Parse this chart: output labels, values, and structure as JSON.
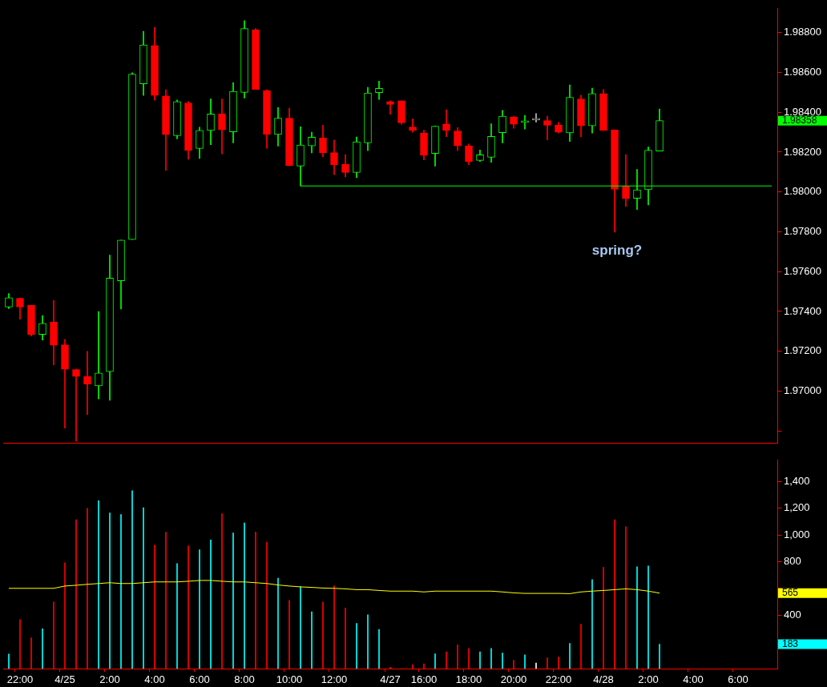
{
  "chart_data": [
    {
      "type": "candlestick",
      "categories": [
        null,
        null,
        null,
        null,
        null,
        null,
        null,
        null,
        null,
        null,
        null,
        null,
        null,
        null,
        null,
        null,
        null,
        null,
        null,
        null,
        null,
        null,
        null,
        null,
        null,
        null,
        null,
        null,
        null,
        null,
        null,
        null,
        null,
        null,
        null,
        null,
        null,
        null,
        null,
        null,
        null,
        null,
        null,
        null,
        null,
        null,
        null,
        null,
        null,
        null,
        null,
        null,
        null,
        null,
        null,
        null,
        null,
        null,
        null,
        null,
        null,
        null,
        null,
        null,
        null,
        null,
        null,
        null,
        null
      ],
      "ohlc": [
        [
          1.97422,
          1.9749,
          1.97414,
          1.97469
        ],
        [
          1.97466,
          1.97468,
          1.97361,
          1.97422
        ],
        [
          1.97431,
          1.97431,
          1.97277,
          1.97284
        ],
        [
          1.97285,
          1.9738,
          1.97257,
          1.9734
        ],
        [
          1.97346,
          1.97455,
          1.97132,
          1.9723
        ],
        [
          1.97233,
          1.9726,
          1.96814,
          1.9711
        ],
        [
          1.97108,
          1.97111,
          1.96748,
          1.97074
        ],
        [
          1.97073,
          1.972,
          1.96883,
          1.97036
        ],
        [
          1.97026,
          1.974,
          1.96961,
          1.97091
        ],
        [
          1.97098,
          1.97683,
          1.96954,
          1.97567
        ],
        [
          1.97554,
          1.97758,
          1.97412,
          1.97758
        ],
        [
          1.97761,
          1.98598,
          1.97761,
          1.98591
        ],
        [
          1.98543,
          1.98806,
          1.98484,
          1.98738
        ],
        [
          1.98735,
          1.98826,
          1.9846,
          1.98484
        ],
        [
          1.98482,
          1.98513,
          1.98109,
          1.98288
        ],
        [
          1.98282,
          1.98462,
          1.98266,
          1.98454
        ],
        [
          1.98447,
          1.98454,
          1.98164,
          1.98208
        ],
        [
          1.98218,
          1.98325,
          1.98168,
          1.98309
        ],
        [
          1.98309,
          1.98467,
          1.98237,
          1.98391
        ],
        [
          1.98391,
          1.98467,
          1.98191,
          1.98312
        ],
        [
          1.98302,
          1.98549,
          1.98246,
          1.98505
        ],
        [
          1.985,
          1.9886,
          1.98471,
          1.9882
        ],
        [
          1.98813,
          1.9882,
          1.98515,
          1.98515
        ],
        [
          1.98509,
          1.98513,
          1.98219,
          1.9829
        ],
        [
          1.98289,
          1.98424,
          1.9823,
          1.9837
        ],
        [
          1.9837,
          1.9842,
          1.98132,
          1.98132
        ],
        [
          1.9813,
          1.98327,
          1.9803,
          1.98236
        ],
        [
          1.98231,
          1.983,
          1.98196,
          1.98275
        ],
        [
          1.98271,
          1.98335,
          1.98176,
          1.98196
        ],
        [
          1.98197,
          1.98261,
          1.98087,
          1.98137
        ],
        [
          1.98139,
          1.98187,
          1.98075,
          1.98098
        ],
        [
          1.98098,
          1.98276,
          1.98071,
          1.98252
        ],
        [
          1.98246,
          1.98525,
          1.98207,
          1.98497
        ],
        [
          1.98499,
          1.98556,
          1.98464,
          1.9852
        ],
        [
          1.98454,
          1.98458,
          1.9839,
          1.98439
        ],
        [
          1.98458,
          1.98458,
          1.9834,
          1.98347
        ],
        [
          1.98326,
          1.98366,
          1.983,
          1.98309
        ],
        [
          1.98296,
          1.9831,
          1.98161,
          1.98184
        ],
        [
          1.98193,
          1.98331,
          1.9813,
          1.9833
        ],
        [
          1.98341,
          1.98412,
          1.98277,
          1.98309
        ],
        [
          1.98306,
          1.98323,
          1.98207,
          1.98231
        ],
        [
          1.98232,
          1.98241,
          1.98137,
          1.98153
        ],
        [
          1.98158,
          1.9821,
          1.98153,
          1.98186
        ],
        [
          1.98174,
          1.98342,
          1.98149,
          1.98279
        ],
        [
          1.98298,
          1.98409,
          1.98246,
          1.9838
        ],
        [
          1.98376,
          1.9838,
          1.9832,
          1.9834
        ],
        [
          1.98349,
          1.98384,
          1.98316,
          1.98357
        ],
        [
          1.98361,
          1.98393,
          1.98351,
          1.98361
        ],
        [
          1.98358,
          1.9838,
          1.98261,
          1.98335
        ],
        [
          1.98335,
          1.98349,
          1.98296,
          1.983
        ],
        [
          1.98297,
          1.98537,
          1.98253,
          1.98475
        ],
        [
          1.98467,
          1.98486,
          1.98276,
          1.98332
        ],
        [
          1.98332,
          1.98521,
          1.98296,
          1.98494
        ],
        [
          1.98494,
          1.98514,
          1.98309,
          1.98309
        ],
        [
          1.98311,
          1.98312,
          1.97798,
          1.98013
        ],
        [
          1.98028,
          1.98187,
          1.97927,
          1.97966
        ],
        [
          1.97968,
          1.98113,
          1.97912,
          1.98011
        ],
        [
          1.98011,
          1.98226,
          1.97935,
          1.98209
        ],
        [
          1.98205,
          1.98416,
          1.98205,
          1.98358
        ],
        null,
        null,
        null,
        null,
        null,
        null,
        null,
        null,
        null,
        null
      ],
      "colors": [
        "#00ff00",
        "#ff0000",
        "#ff0000",
        "#00ff00",
        "#ff0000",
        "#ff0000",
        "#ff0000",
        "#ff0000",
        "#00ff00",
        "#00ff00",
        "#00ff00",
        "#00ff00",
        "#00ff00",
        "#ff0000",
        "#ff0000",
        "#00ff00",
        "#ff0000",
        "#00ff00",
        "#00ff00",
        "#ff0000",
        "#00ff00",
        "#00ff00",
        "#ff0000",
        "#ff0000",
        "#00ff00",
        "#ff0000",
        "#00ff00",
        "#00ff00",
        "#ff0000",
        "#ff0000",
        "#ff0000",
        "#00ff00",
        "#00ff00",
        "#00ff00",
        "#ff0000",
        "#ff0000",
        "#ff0000",
        "#ff0000",
        "#00ff00",
        "#ff0000",
        "#ff0000",
        "#ff0000",
        "#00ff00",
        "#00ff00",
        "#00ff00",
        "#ff0000",
        "#00ff00",
        "#c0c0c0",
        "#ff0000",
        "#ff0000",
        "#00ff00",
        "#ff0000",
        "#00ff00",
        "#ff0000",
        "#ff0000",
        "#ff0000",
        "#00ff00",
        "#00ff00",
        "#00ff00",
        null,
        null,
        null,
        null,
        null,
        null,
        null,
        null,
        null,
        null
      ],
      "series": [
        {
          "type": "line",
          "color": "#00ff00",
          "values": [
            null,
            null,
            null,
            null,
            null,
            null,
            null,
            null,
            null,
            null,
            null,
            null,
            null,
            null,
            null,
            null,
            null,
            null,
            null,
            null,
            null,
            null,
            null,
            null,
            null,
            null,
            1.9803,
            1.9803,
            1.9803,
            1.9803,
            1.9803,
            1.9803,
            1.9803,
            1.9803,
            1.9803,
            1.9803,
            1.9803,
            1.9803,
            1.9803,
            1.9803,
            1.9803,
            1.9803,
            1.9803,
            1.9803,
            1.9803,
            1.9803,
            1.9803,
            1.9803,
            1.9803,
            1.9803,
            1.9803,
            1.9803,
            1.9803,
            1.9803,
            1.9803,
            1.9803,
            1.9803,
            1.9803,
            1.9803,
            1.9803,
            1.9803,
            1.9803,
            1.9803,
            1.9803,
            1.9803,
            1.9803,
            1.9803,
            1.9803,
            1.9803
          ]
        }
      ],
      "ylim": [
        1.9674,
        1.9892
      ],
      "yticks": [
        {
          "value": 1.968,
          "label": null
        },
        {
          "value": 1.97,
          "label": "1.97000"
        },
        {
          "value": 1.972,
          "label": "1.97200"
        },
        {
          "value": 1.974,
          "label": "1.97400"
        },
        {
          "value": 1.976,
          "label": "1.97600"
        },
        {
          "value": 1.978,
          "label": "1.97800"
        },
        {
          "value": 1.98,
          "label": "1.98000"
        },
        {
          "value": 1.982,
          "label": "1.98200"
        },
        {
          "value": 1.984,
          "label": "1.98400"
        },
        {
          "value": 1.986,
          "label": "1.98600"
        },
        {
          "value": 1.988,
          "label": "1.98800"
        }
      ],
      "tick_labels": "y",
      "annotations": [
        "1.98358",
        "spring?"
      ]
    },
    {
      "type": "bar",
      "categories": [
        null,
        "22:00",
        null,
        null,
        null,
        "4/25",
        null,
        null,
        null,
        "2:00",
        null,
        null,
        null,
        "4:00",
        null,
        null,
        null,
        "6:00",
        null,
        null,
        null,
        "8:00",
        null,
        null,
        null,
        "10:00",
        null,
        null,
        null,
        "12:00",
        null,
        null,
        null,
        null,
        "4/27",
        null,
        null,
        "16:00",
        null,
        null,
        null,
        "18:00",
        null,
        null,
        null,
        "20:00",
        null,
        null,
        null,
        "22:00",
        null,
        null,
        null,
        "4/28",
        null,
        null,
        null,
        "2:00",
        null,
        null,
        null,
        "4:00",
        null,
        null,
        null,
        "6:00",
        null,
        null,
        null
      ],
      "series": [
        {
          "type": "bar",
          "colors": [
            "#00ffff",
            "#ff0000",
            "#ff0000",
            "#00ffff",
            "#ff0000",
            "#ff0000",
            "#ff0000",
            "#ff0000",
            "#00ffff",
            "#00ffff",
            "#00ffff",
            "#00ffff",
            "#00ffff",
            "#ff0000",
            "#ff0000",
            "#00ffff",
            "#ff0000",
            "#00ffff",
            "#00ffff",
            "#ff0000",
            "#00ffff",
            "#00ffff",
            "#ff0000",
            "#ff0000",
            "#00ffff",
            "#ff0000",
            "#00ffff",
            "#00ffff",
            "#ff0000",
            "#ff0000",
            "#ff0000",
            "#00ffff",
            "#00ffff",
            "#00ffff",
            "#ff0000",
            "#ff0000",
            "#ff0000",
            "#ff0000",
            "#00ffff",
            "#ff0000",
            "#ff0000",
            "#ff0000",
            "#00ffff",
            "#00ffff",
            "#00ffff",
            "#ff0000",
            "#00ffff",
            "#ffffff",
            "#ff0000",
            "#ff0000",
            "#00ffff",
            "#ff0000",
            "#00ffff",
            "#ff0000",
            "#ff0000",
            "#ff0000",
            "#00ffff",
            "#00ffff",
            "#00ffff",
            null,
            null,
            null,
            null,
            null,
            null,
            null,
            null,
            null,
            null
          ],
          "values": [
            109,
            367,
            230,
            298,
            499,
            792,
            1114,
            1200,
            1257,
            1165,
            1154,
            1332,
            1205,
            924,
            1022,
            786,
            918,
            890,
            964,
            1159,
            1016,
            1091,
            1022,
            947,
            677,
            511,
            614,
            425,
            499,
            620,
            453,
            339,
            402,
            293,
            10,
            0,
            30,
            36,
            111,
            126,
            178,
            151,
            126,
            151,
            117,
            63,
            103,
            42,
            80,
            86,
            189,
            333,
            666,
            758,
            1114,
            1062,
            763,
            769,
            183,
            null,
            null,
            null,
            null,
            null,
            null,
            null,
            null,
            null,
            null
          ]
        },
        {
          "type": "line",
          "color": "#ffff00",
          "values": [
            601,
            601,
            601,
            601,
            601,
            618,
            624,
            631,
            637,
            643,
            637,
            637,
            643,
            649,
            649,
            649,
            654,
            660,
            660,
            654,
            649,
            649,
            643,
            637,
            626,
            618,
            612,
            608,
            603,
            601,
            597,
            591,
            591,
            585,
            580,
            580,
            580,
            574,
            580,
            580,
            580,
            580,
            580,
            580,
            574,
            567,
            563,
            563,
            563,
            563,
            561,
            574,
            580,
            585,
            591,
            597,
            591,
            580,
            565,
            null,
            null,
            null,
            null,
            null,
            null,
            null,
            null,
            null,
            null
          ]
        }
      ],
      "ylim": [
        0,
        1560
      ],
      "yticks": [
        {
          "value": 200,
          "label": null
        },
        400,
        {
          "value": 600,
          "label": null
        },
        800,
        {
          "value": 1000,
          "label": "1,000"
        },
        {
          "value": 1200,
          "label": "1,200"
        },
        {
          "value": 1400,
          "label": "1,400"
        }
      ],
      "annotations": [
        "183",
        "565"
      ]
    }
  ]
}
